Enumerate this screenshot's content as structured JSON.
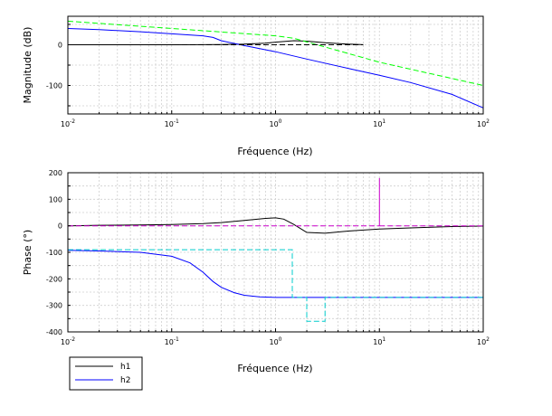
{
  "chart_data": [
    {
      "type": "line",
      "xscale": "log",
      "xlim": [
        0.01,
        100
      ],
      "ylim": [
        -170,
        70
      ],
      "grid": true,
      "xlabel": "Fréquence (Hz)",
      "ylabel": "Magnitude (dB)",
      "x_ticks": [
        0.01,
        0.1,
        1,
        10,
        100
      ],
      "x_tick_labels": [
        {
          "base": "10",
          "exp": "-2"
        },
        {
          "base": "10",
          "exp": "-1"
        },
        {
          "base": "10",
          "exp": "0"
        },
        {
          "base": "10",
          "exp": "1"
        },
        {
          "base": "10",
          "exp": "2"
        }
      ],
      "y_ticks": [
        -100,
        0
      ],
      "y_tick_labels": [
        "-100",
        "0"
      ],
      "series": [
        {
          "name": "h1",
          "color": "#000000",
          "dash": "",
          "x": [
            0.01,
            0.02,
            0.05,
            0.1,
            0.2,
            0.3,
            0.5,
            0.8,
            1.0,
            1.5,
            2.0,
            3.0,
            5.0,
            7.0
          ],
          "y": [
            0,
            0,
            0,
            0,
            0.2,
            0.6,
            1.5,
            4.0,
            6.5,
            10.0,
            9.0,
            5.0,
            1.5,
            0.3
          ]
        },
        {
          "name": "h2",
          "color": "#0000ff",
          "dash": "",
          "x": [
            0.01,
            0.02,
            0.05,
            0.1,
            0.2,
            0.25,
            0.3,
            0.5,
            1.0,
            2.0,
            5.0,
            10.0,
            20.0,
            50.0,
            100.0
          ],
          "y": [
            40,
            37,
            32,
            27,
            22,
            18,
            10,
            -2,
            -17,
            -35,
            -58,
            -75,
            -93,
            -122,
            -155
          ]
        },
        {
          "color": "#00ff00",
          "dash": "6,3",
          "x": [
            0.01,
            0.1,
            1,
            1.5,
            10,
            100
          ],
          "y": [
            58,
            40,
            22,
            16,
            -43,
            -100
          ]
        },
        {
          "color": "#000000",
          "dash": "6,3",
          "x": [
            0.01,
            0.4,
            1,
            1.5,
            3,
            7
          ],
          "y": [
            0,
            0,
            0,
            0,
            0,
            0
          ]
        }
      ]
    },
    {
      "type": "line",
      "xscale": "log",
      "xlim": [
        0.01,
        100
      ],
      "ylim": [
        -400,
        200
      ],
      "grid": true,
      "xlabel": "Fréquence (Hz)",
      "ylabel": "Phase (°)",
      "x_ticks": [
        0.01,
        0.1,
        1,
        10,
        100
      ],
      "x_tick_labels": [
        {
          "base": "10",
          "exp": "-2"
        },
        {
          "base": "10",
          "exp": "-1"
        },
        {
          "base": "10",
          "exp": "0"
        },
        {
          "base": "10",
          "exp": "1"
        },
        {
          "base": "10",
          "exp": "2"
        }
      ],
      "y_ticks": [
        -400,
        -300,
        -200,
        -100,
        0,
        100,
        200
      ],
      "y_tick_labels": [
        "-400",
        "-300",
        "-200",
        "-100",
        "0",
        "100",
        "200"
      ],
      "series": [
        {
          "name": "h1",
          "color": "#000000",
          "dash": "",
          "x": [
            0.01,
            0.02,
            0.05,
            0.1,
            0.2,
            0.3,
            0.5,
            0.8,
            1.0,
            1.2,
            1.5,
            2.0,
            3.0,
            5.0,
            10.0,
            20.0,
            50.0,
            100.0
          ],
          "y": [
            0,
            2,
            3,
            5,
            8,
            12,
            20,
            28,
            30,
            25,
            5,
            -25,
            -28,
            -20,
            -12,
            -8,
            -3,
            -1
          ]
        },
        {
          "name": "h2",
          "color": "#0000ff",
          "dash": "",
          "x": [
            0.01,
            0.02,
            0.05,
            0.1,
            0.15,
            0.2,
            0.25,
            0.3,
            0.4,
            0.5,
            0.7,
            1.0,
            2.0,
            5.0,
            10.0,
            100.0
          ],
          "y": [
            -92,
            -95,
            -100,
            -115,
            -140,
            -175,
            -210,
            -232,
            -252,
            -262,
            -268,
            -270,
            -270,
            -270,
            -270,
            -270
          ]
        },
        {
          "color": "#00cccc",
          "dash": "6,3",
          "x": [
            0.01,
            1.45,
            1.45,
            2.0,
            2.0,
            3.0,
            3.0,
            100
          ],
          "y": [
            -90,
            -90,
            -270,
            -270,
            -360,
            -360,
            -270,
            -270
          ]
        },
        {
          "color": "#cc00cc",
          "dash": "6,3",
          "x": [
            0.01,
            10,
            10,
            10,
            100
          ],
          "y": [
            0,
            0,
            180,
            0,
            0
          ]
        }
      ]
    }
  ],
  "legend": [
    {
      "label": "h1",
      "color": "#000000"
    },
    {
      "label": "h2",
      "color": "#0000ff"
    }
  ]
}
